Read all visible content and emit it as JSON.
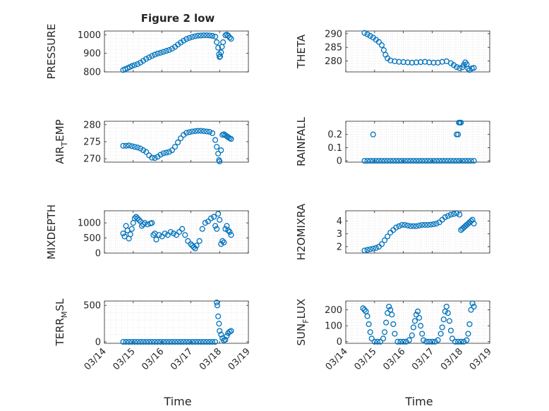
{
  "figure": {
    "title": "Figure 2 low",
    "xlabel": "Time"
  },
  "chart_data": [
    {
      "type": "scatter",
      "ylabel": {
        "base": "PRESSURE"
      },
      "xlim": [
        0,
        5
      ],
      "ylim": [
        800,
        1020
      ],
      "yticks": [
        800,
        900,
        1000
      ],
      "ytick_labels": [
        "800",
        "900",
        "1000"
      ],
      "xticks": [
        0,
        1,
        2,
        3,
        4,
        5
      ],
      "grid": true,
      "marker": "circle-open",
      "color": "#0072BD",
      "x": [
        0.65,
        0.72,
        0.8,
        0.88,
        0.96,
        1.05,
        1.15,
        1.25,
        1.35,
        1.45,
        1.55,
        1.65,
        1.75,
        1.85,
        1.95,
        2.05,
        2.15,
        2.25,
        2.35,
        2.45,
        2.55,
        2.65,
        2.75,
        2.85,
        2.95,
        3.05,
        3.15,
        3.25,
        3.35,
        3.45,
        3.55,
        3.65,
        3.75,
        3.85,
        3.9,
        3.95,
        3.98,
        4.0,
        4.02,
        4.05,
        4.08,
        4.12,
        4.2,
        4.25,
        4.3,
        4.35,
        4.4
      ],
      "y": [
        810,
        815,
        820,
        826,
        832,
        837,
        842,
        850,
        860,
        870,
        878,
        886,
        893,
        899,
        903,
        908,
        913,
        918,
        925,
        935,
        947,
        958,
        968,
        977,
        983,
        988,
        992,
        995,
        996,
        997,
        997,
        996,
        994,
        990,
        960,
        930,
        895,
        880,
        883,
        905,
        935,
        960,
        997,
        1001,
        995,
        985,
        978
      ]
    },
    {
      "type": "scatter",
      "ylabel": {
        "base": "THETA"
      },
      "xlim": [
        0,
        5
      ],
      "ylim": [
        276,
        291
      ],
      "yticks": [
        280,
        285,
        290
      ],
      "ytick_labels": [
        "280",
        "285",
        "290"
      ],
      "xticks": [
        0,
        1,
        2,
        3,
        4,
        5
      ],
      "grid": true,
      "marker": "circle-open",
      "color": "#0072BD",
      "x": [
        0.65,
        0.75,
        0.85,
        0.95,
        1.05,
        1.15,
        1.25,
        1.32,
        1.38,
        1.45,
        1.55,
        1.7,
        1.85,
        2.0,
        2.15,
        2.3,
        2.45,
        2.6,
        2.75,
        2.9,
        3.05,
        3.2,
        3.35,
        3.5,
        3.65,
        3.75,
        3.85,
        3.95,
        4.05,
        4.1,
        4.15,
        4.2,
        4.25,
        4.3,
        4.38,
        4.45
      ],
      "y": [
        290.3,
        289.8,
        289.2,
        288.6,
        287.8,
        287,
        285.8,
        284,
        282.3,
        281,
        280.2,
        279.9,
        279.7,
        279.6,
        279.5,
        279.4,
        279.5,
        279.6,
        279.7,
        279.5,
        279.4,
        279.4,
        279.7,
        279.9,
        279.2,
        278.5,
        277.8,
        277.4,
        277.7,
        278.6,
        279.5,
        278.8,
        277.2,
        276.7,
        277.3,
        277.5
      ]
    },
    {
      "type": "scatter",
      "ylabel": {
        "base": "AIR",
        "sub": "T",
        "after": "EMP"
      },
      "xlim": [
        0,
        5
      ],
      "ylim": [
        269,
        281
      ],
      "yticks": [
        270,
        275,
        280
      ],
      "ytick_labels": [
        "270",
        "275",
        "280"
      ],
      "xticks": [
        0,
        1,
        2,
        3,
        4,
        5
      ],
      "grid": true,
      "marker": "circle-open",
      "color": "#0072BD",
      "x": [
        0.65,
        0.75,
        0.85,
        0.95,
        1.05,
        1.15,
        1.25,
        1.35,
        1.45,
        1.55,
        1.65,
        1.75,
        1.85,
        1.95,
        2.05,
        2.15,
        2.25,
        2.35,
        2.45,
        2.55,
        2.65,
        2.75,
        2.85,
        2.95,
        3.05,
        3.15,
        3.25,
        3.35,
        3.45,
        3.55,
        3.65,
        3.75,
        3.85,
        3.9,
        3.95,
        3.98,
        4.0,
        4.05,
        4.1,
        4.15,
        4.2,
        4.25,
        4.3,
        4.35,
        4.4
      ],
      "y": [
        273.8,
        273.8,
        273.9,
        273.7,
        273.5,
        273.3,
        273,
        272.5,
        272,
        271,
        270.3,
        270.2,
        270.6,
        271.2,
        271.6,
        271.8,
        272,
        272.5,
        273.5,
        274.8,
        276,
        277,
        277.6,
        277.8,
        278,
        278.1,
        278.2,
        278.2,
        278.1,
        278,
        277.9,
        277.5,
        275.5,
        273.5,
        271.5,
        269.6,
        269.2,
        272.5,
        277,
        277.2,
        276.9,
        276.6,
        276.3,
        276,
        275.8
      ]
    },
    {
      "type": "scatter",
      "ylabel": {
        "base": "RAINFALL"
      },
      "xlim": [
        0,
        5
      ],
      "ylim": [
        -0.01,
        0.3
      ],
      "yticks": [
        0,
        0.1,
        0.2
      ],
      "ytick_labels": [
        "0",
        "0.1",
        "0.2"
      ],
      "xticks": [
        0,
        1,
        2,
        3,
        4,
        5
      ],
      "grid": true,
      "marker": "circle-open",
      "color": "#0072BD",
      "x": [
        0.65,
        0.75,
        0.85,
        0.95,
        1.05,
        1.15,
        1.25,
        1.35,
        1.45,
        1.55,
        1.65,
        1.75,
        1.85,
        1.95,
        2.05,
        2.15,
        2.25,
        2.35,
        2.45,
        2.55,
        2.65,
        2.75,
        2.85,
        2.95,
        3.05,
        3.15,
        3.25,
        3.35,
        3.45,
        3.55,
        3.65,
        3.75,
        3.85,
        3.95,
        4.05,
        4.15,
        4.25,
        4.35,
        4.45,
        0.95,
        3.85,
        3.9,
        3.93,
        3.96,
        4.0
      ],
      "y": [
        0,
        0,
        0,
        0,
        0,
        0,
        0,
        0,
        0,
        0,
        0,
        0,
        0,
        0,
        0,
        0,
        0,
        0,
        0,
        0,
        0,
        0,
        0,
        0,
        0,
        0,
        0,
        0,
        0,
        0,
        0,
        0,
        0,
        0,
        0,
        0,
        0,
        0,
        0,
        0.2,
        0.2,
        0.2,
        0.29,
        0.29,
        0.29
      ]
    },
    {
      "type": "scatter",
      "ylabel": {
        "base": "MIXDEPTH"
      },
      "xlim": [
        0,
        5
      ],
      "ylim": [
        0,
        1400
      ],
      "yticks": [
        0,
        500,
        1000
      ],
      "ytick_labels": [
        "0",
        "500",
        "1000"
      ],
      "xticks": [
        0,
        1,
        2,
        3,
        4,
        5
      ],
      "grid": true,
      "marker": "circle-open",
      "color": "#0072BD",
      "x": [
        0.65,
        0.7,
        0.75,
        0.8,
        0.85,
        0.9,
        0.95,
        1.0,
        1.05,
        1.1,
        1.15,
        1.2,
        1.25,
        1.3,
        1.35,
        1.4,
        1.5,
        1.6,
        1.65,
        1.7,
        1.75,
        1.8,
        1.9,
        2.0,
        2.1,
        2.2,
        2.3,
        2.4,
        2.5,
        2.6,
        2.7,
        2.8,
        2.9,
        3.0,
        3.05,
        3.1,
        3.15,
        3.2,
        3.3,
        3.4,
        3.5,
        3.6,
        3.7,
        3.8,
        3.85,
        3.9,
        3.95,
        4.0,
        4.05,
        4.1,
        4.15,
        4.2,
        4.25,
        4.3,
        4.35,
        4.4
      ],
      "y": [
        650,
        550,
        900,
        750,
        480,
        620,
        800,
        1000,
        1150,
        1200,
        1150,
        1100,
        1050,
        900,
        950,
        1000,
        950,
        980,
        1000,
        600,
        650,
        450,
        600,
        550,
        650,
        600,
        700,
        650,
        600,
        700,
        800,
        600,
        400,
        300,
        250,
        200,
        150,
        250,
        400,
        800,
        1000,
        1050,
        1150,
        1200,
        900,
        800,
        1300,
        1100,
        300,
        400,
        350,
        800,
        900,
        750,
        700,
        600
      ]
    },
    {
      "type": "scatter",
      "ylabel": {
        "base": "H2OMIXRA"
      },
      "xlim": [
        0,
        5
      ],
      "ylim": [
        1.5,
        4.8
      ],
      "yticks": [
        2,
        3,
        4
      ],
      "ytick_labels": [
        "2",
        "3",
        "4"
      ],
      "xticks": [
        0,
        1,
        2,
        3,
        4,
        5
      ],
      "grid": true,
      "marker": "circle-open",
      "color": "#0072BD",
      "x": [
        0.65,
        0.75,
        0.85,
        0.95,
        1.05,
        1.15,
        1.25,
        1.35,
        1.45,
        1.55,
        1.65,
        1.75,
        1.85,
        1.95,
        2.05,
        2.15,
        2.25,
        2.35,
        2.45,
        2.55,
        2.65,
        2.75,
        2.85,
        2.95,
        3.05,
        3.15,
        3.25,
        3.35,
        3.45,
        3.55,
        3.65,
        3.75,
        3.85,
        3.95,
        4.0,
        4.05,
        4.1,
        4.15,
        4.2,
        4.25,
        4.3,
        4.35,
        4.4,
        4.45
      ],
      "y": [
        1.7,
        1.75,
        1.8,
        1.85,
        1.9,
        2.0,
        2.2,
        2.5,
        2.8,
        3.1,
        3.3,
        3.5,
        3.6,
        3.7,
        3.7,
        3.65,
        3.6,
        3.6,
        3.6,
        3.65,
        3.7,
        3.7,
        3.7,
        3.72,
        3.75,
        3.8,
        3.9,
        4.1,
        4.3,
        4.4,
        4.5,
        4.55,
        4.6,
        4.5,
        3.3,
        3.4,
        3.5,
        3.6,
        3.7,
        3.8,
        3.9,
        4.0,
        4.1,
        3.8
      ]
    },
    {
      "type": "scatter",
      "ylabel": {
        "base": "TERR",
        "sub": "M",
        "after": "SL"
      },
      "xlim": [
        0,
        5
      ],
      "ylim": [
        -20,
        560
      ],
      "yticks": [
        0,
        500
      ],
      "ytick_labels": [
        "0",
        "500"
      ],
      "xticks": [
        0,
        1,
        2,
        3,
        4,
        5
      ],
      "grid": true,
      "marker": "circle-open",
      "color": "#0072BD",
      "x": [
        0.65,
        0.75,
        0.85,
        0.95,
        1.05,
        1.15,
        1.25,
        1.35,
        1.45,
        1.55,
        1.65,
        1.75,
        1.85,
        1.95,
        2.05,
        2.15,
        2.25,
        2.35,
        2.45,
        2.55,
        2.65,
        2.75,
        2.85,
        2.95,
        3.05,
        3.15,
        3.25,
        3.35,
        3.45,
        3.55,
        3.65,
        3.75,
        3.85,
        3.9,
        3.92,
        3.95,
        3.98,
        4.0,
        4.05,
        4.1,
        4.15,
        4.2,
        4.25,
        4.3,
        4.35,
        4.4
      ],
      "y": [
        0,
        0,
        0,
        0,
        0,
        0,
        0,
        0,
        0,
        0,
        0,
        0,
        0,
        0,
        0,
        0,
        0,
        0,
        0,
        0,
        0,
        0,
        0,
        0,
        0,
        0,
        0,
        0,
        0,
        0,
        0,
        0,
        0,
        540,
        500,
        350,
        250,
        150,
        100,
        50,
        20,
        30,
        80,
        120,
        140,
        150
      ]
    },
    {
      "type": "scatter",
      "ylabel": {
        "base": "SUN",
        "sub": "F",
        "after": "LUX"
      },
      "xlim": [
        0,
        5
      ],
      "ylim": [
        -10,
        255
      ],
      "yticks": [
        0,
        100,
        200
      ],
      "ytick_labels": [
        "0",
        "100",
        "200"
      ],
      "xticks": [
        0,
        1,
        2,
        3,
        4,
        5
      ],
      "grid": true,
      "marker": "circle-open",
      "color": "#0072BD",
      "x": [
        0.6,
        0.65,
        0.7,
        0.75,
        0.8,
        0.85,
        0.9,
        1.0,
        1.1,
        1.2,
        1.3,
        1.35,
        1.4,
        1.45,
        1.5,
        1.55,
        1.6,
        1.65,
        1.7,
        1.8,
        1.9,
        2.0,
        2.1,
        2.2,
        2.3,
        2.35,
        2.4,
        2.45,
        2.5,
        2.55,
        2.6,
        2.65,
        2.7,
        2.8,
        2.9,
        3.0,
        3.1,
        3.2,
        3.3,
        3.35,
        3.4,
        3.45,
        3.5,
        3.55,
        3.6,
        3.65,
        3.7,
        3.8,
        3.9,
        4.0,
        4.1,
        4.2,
        4.25,
        4.3,
        4.35,
        4.4,
        4.45
      ],
      "y": [
        210,
        200,
        190,
        160,
        110,
        60,
        20,
        0,
        0,
        0,
        20,
        60,
        120,
        180,
        220,
        200,
        170,
        110,
        50,
        0,
        0,
        0,
        0,
        10,
        40,
        90,
        130,
        170,
        190,
        150,
        100,
        50,
        10,
        0,
        0,
        0,
        0,
        10,
        50,
        90,
        140,
        190,
        220,
        180,
        130,
        70,
        20,
        0,
        0,
        0,
        0,
        10,
        50,
        110,
        200,
        240,
        220
      ]
    }
  ],
  "x_axis": {
    "tick_labels": [
      "03/14",
      "03/15",
      "03/16",
      "03/17",
      "03/18",
      "03/19"
    ]
  }
}
